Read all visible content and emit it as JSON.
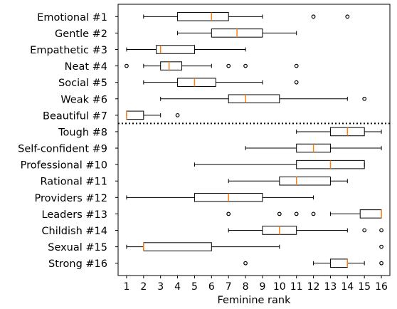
{
  "chart_data": {
    "type": "boxplot",
    "orientation": "horizontal",
    "xlabel": "Feminine rank",
    "xlim": [
      0.5,
      16.5
    ],
    "xticks": [
      1,
      2,
      3,
      4,
      5,
      6,
      7,
      8,
      9,
      10,
      11,
      12,
      13,
      14,
      15,
      16
    ],
    "grid": false,
    "divider": {
      "style": "dotted",
      "between": [
        "Beautiful #7",
        "Tough #8"
      ]
    },
    "box_color": "#000000",
    "median_color": "#ff7f0e",
    "categories": [
      {
        "label": "Emotional #1",
        "whisker_low": 2,
        "q1": 4,
        "median": 6,
        "q3": 7,
        "whisker_high": 9,
        "outliers": [
          12,
          14
        ]
      },
      {
        "label": "Gentle #2",
        "whisker_low": 4,
        "q1": 6,
        "median": 7.5,
        "q3": 9,
        "whisker_high": 11,
        "outliers": []
      },
      {
        "label": "Empathetic #3",
        "whisker_low": 1,
        "q1": 2.75,
        "median": 3,
        "q3": 5,
        "whisker_high": 8,
        "outliers": []
      },
      {
        "label": "Neat #4",
        "whisker_low": 2,
        "q1": 3,
        "median": 3.5,
        "q3": 4.25,
        "whisker_high": 6,
        "outliers": [
          1,
          7,
          8,
          11
        ]
      },
      {
        "label": "Social #5",
        "whisker_low": 2,
        "q1": 4,
        "median": 5,
        "q3": 6.25,
        "whisker_high": 9,
        "outliers": [
          11
        ]
      },
      {
        "label": "Weak #6",
        "whisker_low": 3,
        "q1": 7,
        "median": 8,
        "q3": 10,
        "whisker_high": 14,
        "outliers": [
          15
        ]
      },
      {
        "label": "Beautiful #7",
        "whisker_low": 1,
        "q1": 1,
        "median": 1,
        "q3": 2,
        "whisker_high": 3,
        "outliers": [
          4
        ]
      },
      {
        "label": "Tough #8",
        "whisker_low": 11,
        "q1": 13,
        "median": 14,
        "q3": 15,
        "whisker_high": 16,
        "outliers": []
      },
      {
        "label": "Self-confident #9",
        "whisker_low": 8,
        "q1": 11,
        "median": 12,
        "q3": 13,
        "whisker_high": 16,
        "outliers": []
      },
      {
        "label": "Professional #10",
        "whisker_low": 5,
        "q1": 11,
        "median": 13,
        "q3": 15,
        "whisker_high": 15,
        "outliers": []
      },
      {
        "label": "Rational #11",
        "whisker_low": 7,
        "q1": 10,
        "median": 11,
        "q3": 13,
        "whisker_high": 14,
        "outliers": []
      },
      {
        "label": "Providers #12",
        "whisker_low": 1,
        "q1": 5,
        "median": 7,
        "q3": 9,
        "whisker_high": 12,
        "outliers": []
      },
      {
        "label": "Leaders #13",
        "whisker_low": 13,
        "q1": 14.75,
        "median": 16,
        "q3": 16,
        "whisker_high": 16,
        "outliers": [
          7,
          10,
          11,
          12
        ]
      },
      {
        "label": "Childish #14",
        "whisker_low": 7,
        "q1": 9,
        "median": 10,
        "q3": 11,
        "whisker_high": 14,
        "outliers": [
          15,
          16
        ]
      },
      {
        "label": "Sexual #15",
        "whisker_low": 1,
        "q1": 2,
        "median": 2,
        "q3": 6,
        "whisker_high": 10,
        "outliers": [
          16
        ]
      },
      {
        "label": "Strong #16",
        "whisker_low": 12,
        "q1": 13,
        "median": 14,
        "q3": 14,
        "whisker_high": 15,
        "outliers": [
          8,
          16
        ]
      }
    ]
  }
}
